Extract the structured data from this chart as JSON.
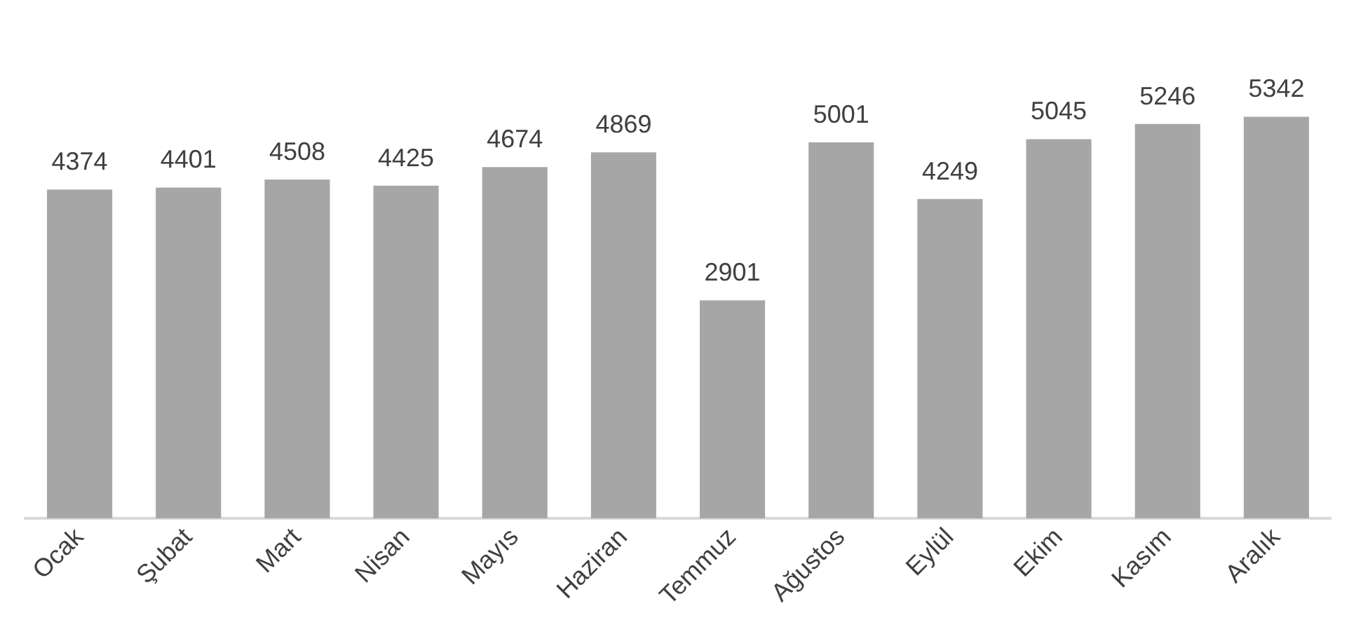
{
  "chart_data": {
    "type": "bar",
    "categories": [
      "Ocak",
      "Şubat",
      "Mart",
      "Nisan",
      "Mayıs",
      "Haziran",
      "Temmuz",
      "Ağustos",
      "Eylül",
      "Ekim",
      "Kasım",
      "Aralık"
    ],
    "values": [
      4374,
      4401,
      4508,
      4425,
      4674,
      4869,
      2901,
      5001,
      4249,
      5045,
      5246,
      5342
    ],
    "color": "#a6a6a6",
    "data_labels": true,
    "grid": false,
    "legend": false
  }
}
